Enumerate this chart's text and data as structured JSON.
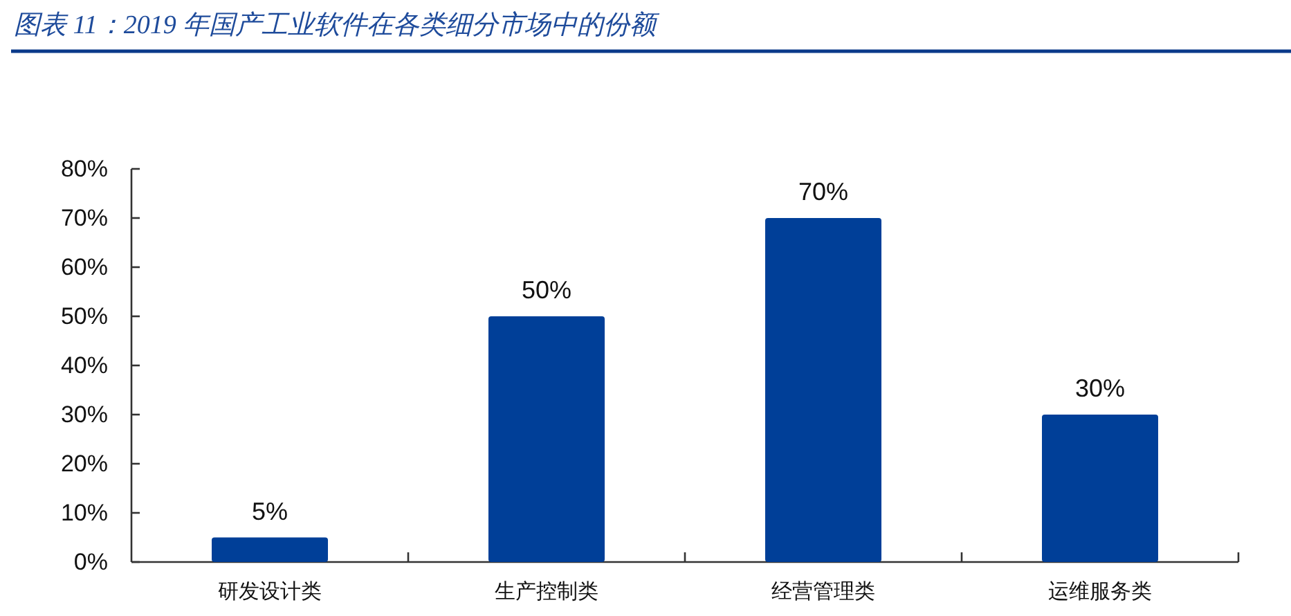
{
  "chart_data": {
    "type": "bar",
    "title": "图表 11：2019 年国产工业软件在各类细分市场中的份额",
    "categories": [
      "研发设计类",
      "生产控制类",
      "经营管理类",
      "运维服务类"
    ],
    "values": [
      5,
      50,
      70,
      30
    ],
    "value_labels": [
      "5%",
      "50%",
      "70%",
      "30%"
    ],
    "color": "#003f98",
    "ylim": [
      0,
      80
    ],
    "yticks": [
      {
        "value": 0,
        "label": "0%"
      },
      {
        "value": 10,
        "label": "10%"
      },
      {
        "value": 20,
        "label": "20%"
      },
      {
        "value": 30,
        "label": "30%"
      },
      {
        "value": 40,
        "label": "40%"
      },
      {
        "value": 50,
        "label": "50%"
      },
      {
        "value": 60,
        "label": "60%"
      },
      {
        "value": 70,
        "label": "70%"
      },
      {
        "value": 80,
        "label": "80%"
      }
    ]
  }
}
